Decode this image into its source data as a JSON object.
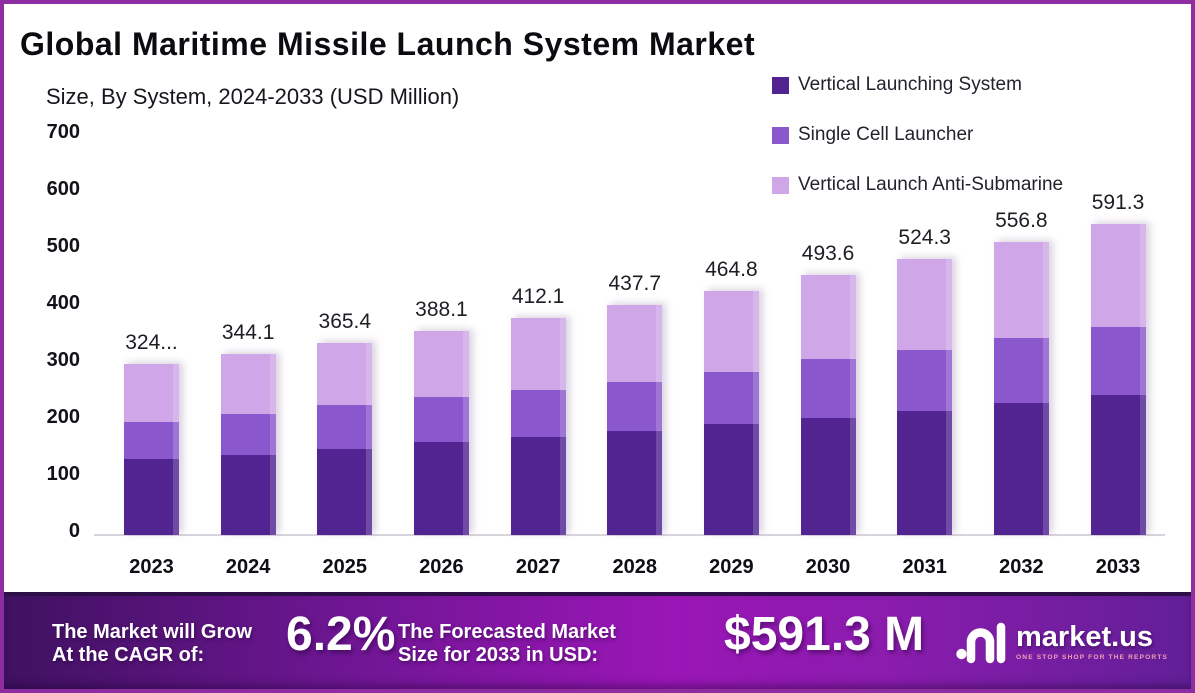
{
  "chart_data": {
    "type": "bar",
    "stacked": true,
    "title": "Global Maritime Missile Launch System Market",
    "subtitle": "Size, By System, 2024-2033 (USD Million)",
    "unit": "USD Million",
    "categories": [
      "2023",
      "2024",
      "2025",
      "2026",
      "2027",
      "2028",
      "2029",
      "2030",
      "2031",
      "2032",
      "2033"
    ],
    "series": [
      {
        "name": "Vertical Launching System",
        "color": "#512492",
        "values": [
          144,
          152,
          163,
          176,
          186,
          198,
          211,
          222,
          236,
          251,
          266
        ]
      },
      {
        "name": "Single Cell Launcher",
        "color": "#8a57cd",
        "values": [
          70,
          78,
          84,
          86,
          90,
          93,
          99,
          112,
          116,
          124,
          129
        ]
      },
      {
        "name": "Vertical Launch Anti-Submarine",
        "color": "#cfa6e8",
        "values": [
          110,
          114.1,
          118.4,
          126.1,
          136.1,
          146.7,
          154.8,
          159.6,
          172.3,
          181.8,
          196.3
        ]
      }
    ],
    "total_labels": [
      "324...",
      "344.1",
      "365.4",
      "388.1",
      "412.1",
      "437.7",
      "464.8",
      "493.6",
      "524.3",
      "556.8",
      "591.3"
    ],
    "yticks": [
      0,
      100,
      200,
      300,
      400,
      500,
      600,
      700
    ],
    "ylim": [
      0,
      700
    ],
    "grid": false,
    "legend_position": "top-right"
  },
  "footer": {
    "cagr_label_line1": "The Market will Grow",
    "cagr_label_line2": "At the CAGR of:",
    "cagr_value": "6.2%",
    "forecast_label_line1": "The Forecasted Market",
    "forecast_label_line2": "Size for 2033 in USD:",
    "forecast_value": "$591.3 M",
    "brand": {
      "name": "market.us",
      "tagline": "ONE STOP SHOP FOR THE REPORTS"
    }
  }
}
